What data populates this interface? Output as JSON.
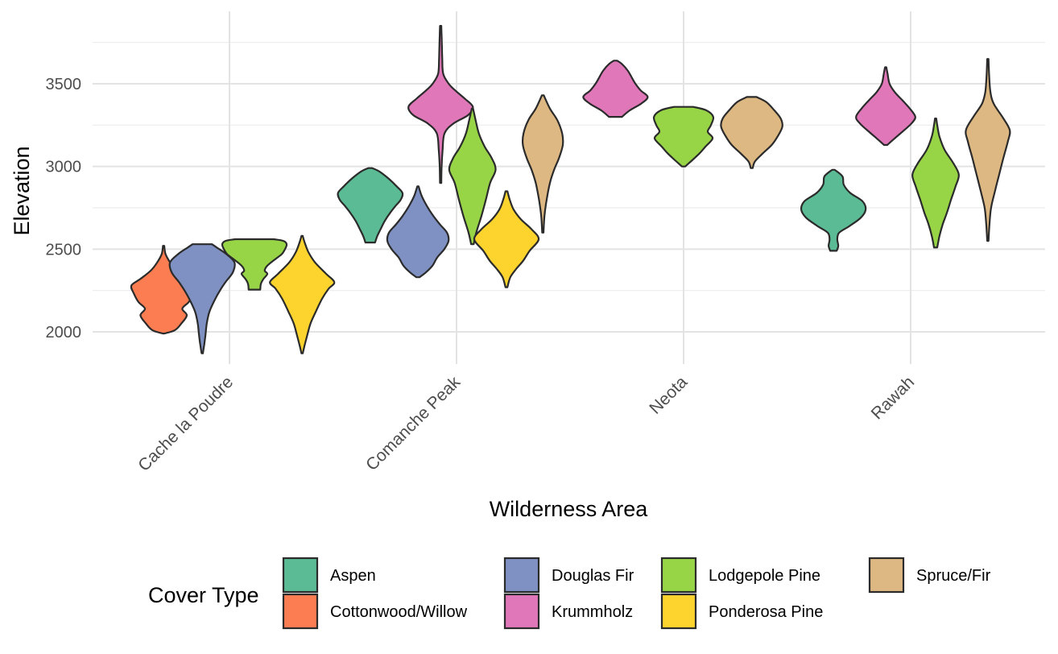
{
  "chart_data": {
    "type": "violin",
    "xlabel": "Wilderness Area",
    "ylabel": "Elevation",
    "categories": [
      "Cache la Poudre",
      "Comanche Peak",
      "Neota",
      "Rawah"
    ],
    "y_ticks": [
      2000,
      2500,
      3000,
      3500
    ],
    "ylim": [
      1820,
      3830
    ],
    "grid": true,
    "legend": {
      "title": "Cover Type",
      "position": "bottom",
      "items": [
        {
          "name": "Aspen",
          "color": "#5BBB95"
        },
        {
          "name": "Cottonwood/Willow",
          "color": "#FC7D52"
        },
        {
          "name": "Douglas Fir",
          "color": "#7F91C2"
        },
        {
          "name": "Krummholz",
          "color": "#E077B9"
        },
        {
          "name": "Lodgepole Pine",
          "color": "#97D546"
        },
        {
          "name": "Ponderosa Pine",
          "color": "#FDD42E"
        },
        {
          "name": "Spruce/Fir",
          "color": "#DEB882"
        }
      ]
    },
    "series": [
      {
        "area": "Cache la Poudre",
        "cover": "Cottonwood/Willow",
        "color": "#FC7D52",
        "x_offset": -0.29,
        "min": 1990,
        "max": 2520,
        "density": [
          [
            1990,
            0.02
          ],
          [
            2010,
            0.35
          ],
          [
            2050,
            0.55
          ],
          [
            2100,
            0.72
          ],
          [
            2140,
            0.58
          ],
          [
            2180,
            0.78
          ],
          [
            2230,
            0.92
          ],
          [
            2280,
            1.0
          ],
          [
            2320,
            0.72
          ],
          [
            2370,
            0.4
          ],
          [
            2420,
            0.2
          ],
          [
            2470,
            0.06
          ],
          [
            2520,
            0.02
          ]
        ]
      },
      {
        "area": "Cache la Poudre",
        "cover": "Douglas Fir",
        "color": "#7F91C2",
        "x_offset": -0.12,
        "min": 1870,
        "max": 2530,
        "density": [
          [
            1870,
            0.02
          ],
          [
            1920,
            0.06
          ],
          [
            1980,
            0.1
          ],
          [
            2050,
            0.14
          ],
          [
            2120,
            0.22
          ],
          [
            2190,
            0.38
          ],
          [
            2250,
            0.55
          ],
          [
            2300,
            0.72
          ],
          [
            2360,
            0.95
          ],
          [
            2420,
            1.0
          ],
          [
            2470,
            0.75
          ],
          [
            2510,
            0.45
          ],
          [
            2530,
            0.3
          ]
        ]
      },
      {
        "area": "Cache la Poudre",
        "cover": "Lodgepole Pine",
        "color": "#97D546",
        "x_offset": 0.11,
        "min": 2255,
        "max": 2560,
        "density": [
          [
            2255,
            0.18
          ],
          [
            2290,
            0.2
          ],
          [
            2320,
            0.28
          ],
          [
            2350,
            0.4
          ],
          [
            2370,
            0.32
          ],
          [
            2400,
            0.4
          ],
          [
            2440,
            0.65
          ],
          [
            2470,
            0.85
          ],
          [
            2500,
            0.95
          ],
          [
            2530,
            1.0
          ],
          [
            2550,
            0.9
          ],
          [
            2560,
            0.6
          ]
        ]
      },
      {
        "area": "Cache la Poudre",
        "cover": "Ponderosa Pine",
        "color": "#FDD42E",
        "x_offset": 0.32,
        "min": 1870,
        "max": 2580,
        "density": [
          [
            1870,
            0.02
          ],
          [
            1920,
            0.08
          ],
          [
            1980,
            0.16
          ],
          [
            2050,
            0.26
          ],
          [
            2120,
            0.42
          ],
          [
            2200,
            0.62
          ],
          [
            2260,
            0.82
          ],
          [
            2300,
            1.0
          ],
          [
            2350,
            0.75
          ],
          [
            2420,
            0.4
          ],
          [
            2480,
            0.2
          ],
          [
            2540,
            0.08
          ],
          [
            2580,
            0.02
          ]
        ]
      },
      {
        "area": "Comanche Peak",
        "cover": "Aspen",
        "color": "#5BBB95",
        "x_offset": -0.38,
        "min": 2540,
        "max": 2990,
        "density": [
          [
            2540,
            0.15
          ],
          [
            2580,
            0.22
          ],
          [
            2620,
            0.32
          ],
          [
            2670,
            0.45
          ],
          [
            2720,
            0.62
          ],
          [
            2760,
            0.78
          ],
          [
            2800,
            0.95
          ],
          [
            2840,
            1.0
          ],
          [
            2880,
            0.82
          ],
          [
            2930,
            0.55
          ],
          [
            2970,
            0.28
          ],
          [
            2990,
            0.06
          ]
        ]
      },
      {
        "area": "Comanche Peak",
        "cover": "Douglas Fir",
        "color": "#7F91C2",
        "x_offset": -0.17,
        "min": 2330,
        "max": 2880,
        "density": [
          [
            2330,
            0.05
          ],
          [
            2360,
            0.25
          ],
          [
            2400,
            0.45
          ],
          [
            2450,
            0.6
          ],
          [
            2500,
            0.82
          ],
          [
            2550,
            0.95
          ],
          [
            2600,
            0.9
          ],
          [
            2650,
            0.68
          ],
          [
            2700,
            0.48
          ],
          [
            2760,
            0.28
          ],
          [
            2820,
            0.12
          ],
          [
            2880,
            0.02
          ]
        ]
      },
      {
        "area": "Comanche Peak",
        "cover": "Krummholz",
        "color": "#E077B9",
        "x_offset": -0.07,
        "min": 2900,
        "max": 3850,
        "density": [
          [
            2900,
            0.02
          ],
          [
            3000,
            0.03
          ],
          [
            3100,
            0.06
          ],
          [
            3200,
            0.12
          ],
          [
            3260,
            0.4
          ],
          [
            3310,
            0.85
          ],
          [
            3360,
            1.0
          ],
          [
            3410,
            0.75
          ],
          [
            3460,
            0.45
          ],
          [
            3500,
            0.25
          ],
          [
            3560,
            0.08
          ],
          [
            3650,
            0.05
          ],
          [
            3720,
            0.04
          ],
          [
            3790,
            0.03
          ],
          [
            3850,
            0.02
          ]
        ]
      },
      {
        "area": "Comanche Peak",
        "cover": "Lodgepole Pine",
        "color": "#97D546",
        "x_offset": 0.07,
        "min": 2530,
        "max": 3350,
        "density": [
          [
            2530,
            0.04
          ],
          [
            2600,
            0.12
          ],
          [
            2700,
            0.28
          ],
          [
            2800,
            0.42
          ],
          [
            2900,
            0.55
          ],
          [
            2980,
            0.72
          ],
          [
            3050,
            0.6
          ],
          [
            3120,
            0.38
          ],
          [
            3200,
            0.2
          ],
          [
            3280,
            0.1
          ],
          [
            3350,
            0.02
          ]
        ]
      },
      {
        "area": "Comanche Peak",
        "cover": "Ponderosa Pine",
        "color": "#FDD42E",
        "x_offset": 0.22,
        "min": 2270,
        "max": 2850,
        "density": [
          [
            2270,
            0.03
          ],
          [
            2330,
            0.12
          ],
          [
            2380,
            0.3
          ],
          [
            2430,
            0.52
          ],
          [
            2490,
            0.72
          ],
          [
            2560,
            1.0
          ],
          [
            2620,
            0.78
          ],
          [
            2680,
            0.45
          ],
          [
            2740,
            0.22
          ],
          [
            2800,
            0.1
          ],
          [
            2850,
            0.03
          ]
        ]
      },
      {
        "area": "Comanche Peak",
        "cover": "Spruce/Fir",
        "color": "#DEB882",
        "x_offset": 0.38,
        "min": 2600,
        "max": 3430,
        "density": [
          [
            2600,
            0.02
          ],
          [
            2700,
            0.05
          ],
          [
            2800,
            0.12
          ],
          [
            2900,
            0.22
          ],
          [
            2980,
            0.35
          ],
          [
            3050,
            0.5
          ],
          [
            3130,
            0.62
          ],
          [
            3200,
            0.6
          ],
          [
            3280,
            0.45
          ],
          [
            3350,
            0.22
          ],
          [
            3430,
            0.03
          ]
        ]
      },
      {
        "area": "Neota",
        "cover": "Krummholz",
        "color": "#E077B9",
        "x_offset": -0.3,
        "min": 3300,
        "max": 3640,
        "density": [
          [
            3300,
            0.2
          ],
          [
            3340,
            0.45
          ],
          [
            3380,
            0.8
          ],
          [
            3420,
            1.0
          ],
          [
            3460,
            0.78
          ],
          [
            3500,
            0.62
          ],
          [
            3540,
            0.5
          ],
          [
            3580,
            0.38
          ],
          [
            3620,
            0.2
          ],
          [
            3640,
            0.05
          ]
        ]
      },
      {
        "area": "Neota",
        "cover": "Lodgepole Pine",
        "color": "#97D546",
        "x_offset": 0.0,
        "min": 3000,
        "max": 3360,
        "density": [
          [
            3000,
            0.05
          ],
          [
            3040,
            0.28
          ],
          [
            3080,
            0.5
          ],
          [
            3120,
            0.68
          ],
          [
            3170,
            0.9
          ],
          [
            3210,
            0.75
          ],
          [
            3250,
            0.85
          ],
          [
            3300,
            0.92
          ],
          [
            3340,
            0.7
          ],
          [
            3360,
            0.3
          ]
        ]
      },
      {
        "area": "Neota",
        "cover": "Spruce/Fir",
        "color": "#DEB882",
        "x_offset": 0.3,
        "min": 2990,
        "max": 3420,
        "density": [
          [
            2990,
            0.03
          ],
          [
            3030,
            0.1
          ],
          [
            3080,
            0.35
          ],
          [
            3130,
            0.62
          ],
          [
            3180,
            0.8
          ],
          [
            3240,
            0.95
          ],
          [
            3290,
            0.9
          ],
          [
            3340,
            0.7
          ],
          [
            3390,
            0.45
          ],
          [
            3420,
            0.15
          ]
        ]
      },
      {
        "area": "Rawah",
        "cover": "Aspen",
        "color": "#5BBB95",
        "x_offset": -0.34,
        "min": 2490,
        "max": 2980,
        "density": [
          [
            2490,
            0.1
          ],
          [
            2520,
            0.15
          ],
          [
            2560,
            0.12
          ],
          [
            2600,
            0.18
          ],
          [
            2640,
            0.5
          ],
          [
            2690,
            0.85
          ],
          [
            2740,
            1.0
          ],
          [
            2790,
            0.9
          ],
          [
            2840,
            0.52
          ],
          [
            2890,
            0.32
          ],
          [
            2940,
            0.28
          ],
          [
            2980,
            0.04
          ]
        ]
      },
      {
        "area": "Rawah",
        "cover": "Krummholz",
        "color": "#E077B9",
        "x_offset": -0.11,
        "min": 3130,
        "max": 3600,
        "density": [
          [
            3130,
            0.05
          ],
          [
            3170,
            0.28
          ],
          [
            3210,
            0.52
          ],
          [
            3260,
            0.8
          ],
          [
            3300,
            0.92
          ],
          [
            3350,
            0.75
          ],
          [
            3400,
            0.52
          ],
          [
            3450,
            0.28
          ],
          [
            3500,
            0.12
          ],
          [
            3560,
            0.06
          ],
          [
            3600,
            0.02
          ]
        ]
      },
      {
        "area": "Rawah",
        "cover": "Lodgepole Pine",
        "color": "#97D546",
        "x_offset": 0.11,
        "min": 2510,
        "max": 3290,
        "density": [
          [
            2510,
            0.05
          ],
          [
            2580,
            0.12
          ],
          [
            2650,
            0.22
          ],
          [
            2720,
            0.35
          ],
          [
            2800,
            0.48
          ],
          [
            2880,
            0.62
          ],
          [
            2950,
            0.72
          ],
          [
            3020,
            0.55
          ],
          [
            3100,
            0.28
          ],
          [
            3180,
            0.12
          ],
          [
            3250,
            0.05
          ],
          [
            3290,
            0.02
          ]
        ]
      },
      {
        "area": "Rawah",
        "cover": "Spruce/Fir",
        "color": "#DEB882",
        "x_offset": 0.34,
        "min": 2550,
        "max": 3650,
        "density": [
          [
            2550,
            0.02
          ],
          [
            2650,
            0.05
          ],
          [
            2750,
            0.1
          ],
          [
            2850,
            0.22
          ],
          [
            2950,
            0.35
          ],
          [
            3050,
            0.48
          ],
          [
            3150,
            0.62
          ],
          [
            3220,
            0.68
          ],
          [
            3300,
            0.45
          ],
          [
            3380,
            0.18
          ],
          [
            3450,
            0.08
          ],
          [
            3550,
            0.04
          ],
          [
            3650,
            0.02
          ]
        ]
      }
    ]
  }
}
